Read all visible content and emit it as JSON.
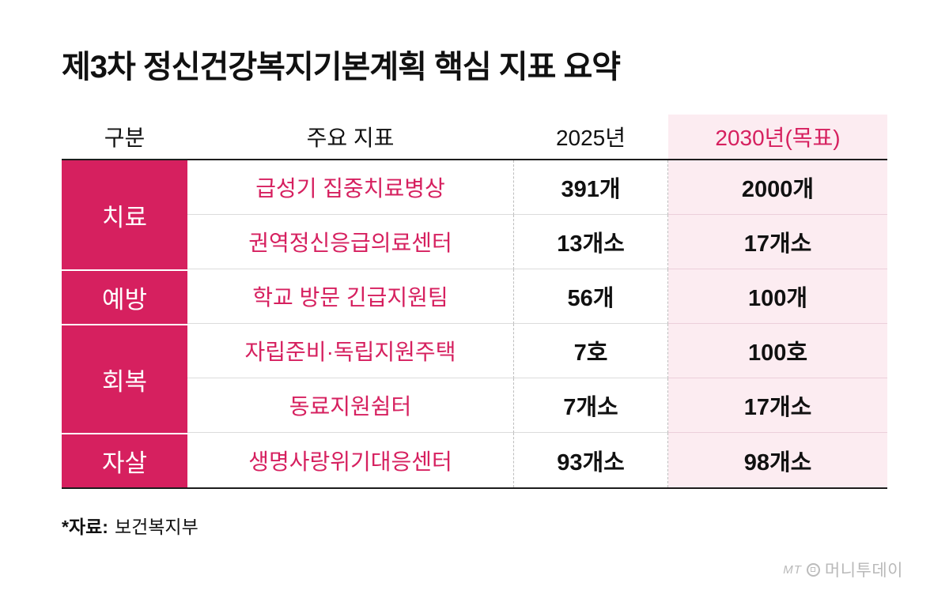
{
  "page": {
    "title": "제3차 정신건강복지기본계획 핵심 지표 요약",
    "source_label": "*자료:",
    "source_value": "보건복지부",
    "watermark_prefix": "MT",
    "watermark_name": "머니투데이"
  },
  "table": {
    "headers": [
      "구분",
      "주요 지표",
      "2025년",
      "2030년(목표)"
    ],
    "groups": [
      {
        "category": "치료",
        "rows": [
          {
            "indicator": "급성기 집중치료병상",
            "y2025": "391개",
            "y2030": "2000개"
          },
          {
            "indicator": "권역정신응급의료센터",
            "y2025": "13개소",
            "y2030": "17개소"
          }
        ]
      },
      {
        "category": "예방",
        "rows": [
          {
            "indicator": "학교 방문 긴급지원팀",
            "y2025": "56개",
            "y2030": "100개"
          }
        ]
      },
      {
        "category": "회복",
        "rows": [
          {
            "indicator": "자립준비·독립지원주택",
            "y2025": "7호",
            "y2030": "100호"
          },
          {
            "indicator": "동료지원쉼터",
            "y2025": "7개소",
            "y2030": "17개소"
          }
        ]
      },
      {
        "category": "자살",
        "rows": [
          {
            "indicator": "생명사랑위기대응센터",
            "y2025": "93개소",
            "y2030": "98개소"
          }
        ]
      }
    ],
    "colors": {
      "category_bg": "#d6205f",
      "accent_text": "#d6205f",
      "highlight_bg": "#fcecf1",
      "rule_dark": "#1c1c1c"
    }
  },
  "chart_data": {
    "type": "table",
    "title": "제3차 정신건강복지기본계획 핵심 지표 요약",
    "columns": [
      "구분",
      "주요 지표",
      "2025년",
      "2030년(목표)"
    ],
    "rows": [
      [
        "치료",
        "급성기 집중치료병상",
        "391개",
        "2000개"
      ],
      [
        "치료",
        "권역정신응급의료센터",
        "13개소",
        "17개소"
      ],
      [
        "예방",
        "학교 방문 긴급지원팀",
        "56개",
        "100개"
      ],
      [
        "회복",
        "자립준비·독립지원주택",
        "7호",
        "100호"
      ],
      [
        "회복",
        "동료지원쉼터",
        "7개소",
        "17개소"
      ],
      [
        "자살",
        "생명사랑위기대응센터",
        "93개소",
        "98개소"
      ]
    ],
    "source": "*자료: 보건복지부"
  }
}
